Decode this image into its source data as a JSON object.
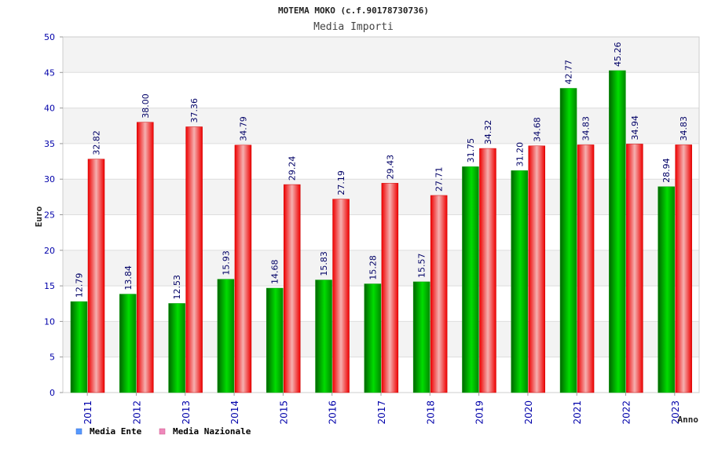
{
  "title": "MOTEMA MOKO (c.f.90178730736)",
  "subtitle": "Media Importi",
  "chart_data": {
    "type": "bar",
    "categories": [
      "2011",
      "2012",
      "2013",
      "2014",
      "2015",
      "2016",
      "2017",
      "2018",
      "2019",
      "2020",
      "2021",
      "2022",
      "2023"
    ],
    "series": [
      {
        "name": "Media Ente",
        "values": [
          12.79,
          13.84,
          12.53,
          15.93,
          14.68,
          15.83,
          15.28,
          15.57,
          31.75,
          31.2,
          42.77,
          45.26,
          28.94
        ],
        "labels": [
          "12.79",
          "13.84",
          "12.53",
          "15.93",
          "14.68",
          "15.83",
          "15.28",
          "15.57",
          "31.75",
          "31.20",
          "42.77",
          "45.26",
          "28.94"
        ],
        "color": "#00bb00",
        "legend_color": "#5599ff"
      },
      {
        "name": "Media Nazionale",
        "values": [
          32.82,
          38.0,
          37.36,
          34.79,
          29.24,
          27.19,
          29.43,
          27.71,
          34.32,
          34.68,
          34.83,
          34.94,
          34.83
        ],
        "labels": [
          "32.82",
          "38.00",
          "37.36",
          "34.79",
          "29.24",
          "27.19",
          "29.43",
          "27.71",
          "34.32",
          "34.68",
          "34.83",
          "34.94",
          "34.83"
        ],
        "color": "#ee1111",
        "legend_color": "#ee88bb"
      }
    ],
    "xlabel": "Anno",
    "ylabel": "Euro",
    "ylim": [
      0,
      50
    ],
    "yticks": [
      "0",
      "5",
      "10",
      "15",
      "20",
      "25",
      "30",
      "35",
      "40",
      "45",
      "50"
    ],
    "grid": true,
    "legend_position": "bottom-left"
  }
}
